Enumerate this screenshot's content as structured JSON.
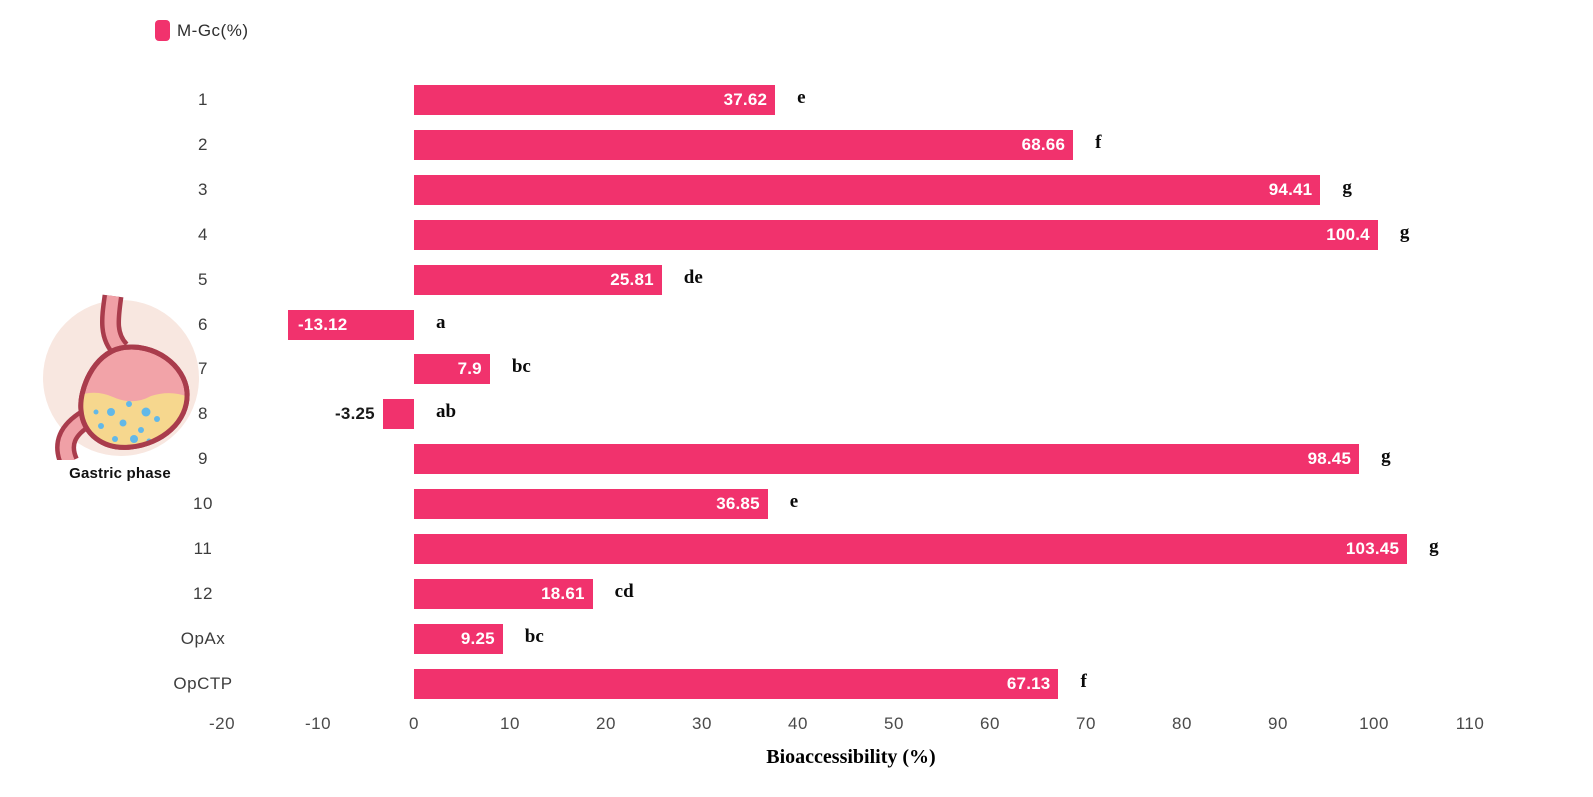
{
  "legend": {
    "label": "M-Gc(%)",
    "swatch_color": "#F1326D"
  },
  "side_figure": {
    "label": "Gastric phase"
  },
  "chart_data": {
    "type": "bar",
    "orientation": "horizontal",
    "title": "",
    "series_name": "M-Gc (%)",
    "categories": [
      "1",
      "2",
      "3",
      "4",
      "5",
      "6",
      "7",
      "8",
      "9",
      "10",
      "11",
      "12",
      "OpAx",
      "OpCTP"
    ],
    "values": [
      37.62,
      68.66,
      94.41,
      100.4,
      25.81,
      -13.12,
      7.9,
      -3.25,
      98.45,
      36.85,
      103.45,
      18.61,
      9.25,
      67.13
    ],
    "sig_letters": [
      "e",
      "f",
      "g",
      "g",
      "de",
      "a",
      "bc",
      "ab",
      "g",
      "e",
      "g",
      "cd",
      "bc",
      "f"
    ],
    "xlabel": "Bioaccessibility (%)",
    "ylabel": "",
    "xticks": [
      -20,
      -10,
      0,
      10,
      20,
      30,
      40,
      50,
      60,
      70,
      80,
      90,
      100,
      110
    ],
    "xlim": [
      -25,
      122
    ],
    "grid": false,
    "legend_position": "top-left",
    "bar_color": "#F1326D",
    "value_label_color_inside": "#FFFFFF",
    "value_label_color_outside": "#1a1a1a"
  }
}
